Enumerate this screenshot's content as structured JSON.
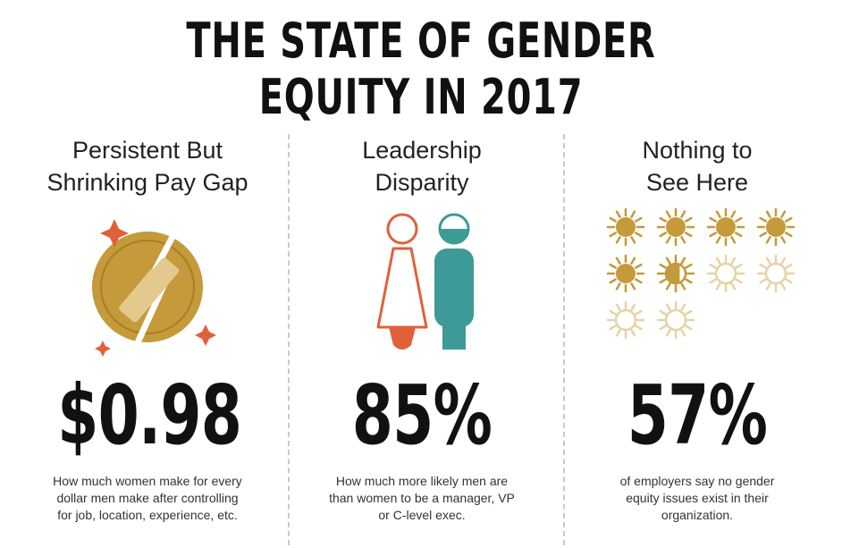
{
  "title": "THE STATE OF GENDER EQUITY IN 2017",
  "columns": [
    {
      "heading_line1": "Persistent But",
      "heading_line2": "Shrinking Pay Gap",
      "stat": "$0.98",
      "desc_line1": "How much women make for every",
      "desc_line2": "dollar men make after controlling",
      "desc_line3": "for job, location, experience, etc.",
      "icon": "broken-coin-icon"
    },
    {
      "heading_line1": "Leadership",
      "heading_line2": "Disparity",
      "stat": "85%",
      "desc_line1": "How much more likely men are",
      "desc_line2": "than women to be a manager, VP",
      "desc_line3": "or C-level exec.",
      "icon": "woman-man-icon"
    },
    {
      "heading_line1": "Nothing to",
      "heading_line2": "See Here",
      "stat": "57%",
      "desc_line1": "of employers say no gender",
      "desc_line2": "equity issues exist in their",
      "desc_line3": "organization.",
      "icon": "sun-grid-icon",
      "filled_fraction": 0.57
    }
  ],
  "colors": {
    "gold": "#c49a3a",
    "orange": "#e0603a",
    "teal": "#3d9a96",
    "text": "#111111"
  }
}
